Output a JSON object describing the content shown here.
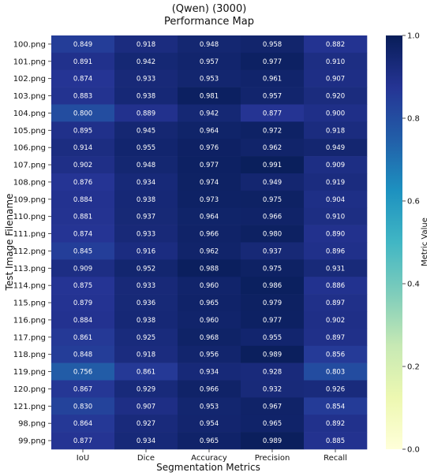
{
  "chart_data": {
    "type": "heatmap",
    "title": "(Qwen) (3000)",
    "subtitle": "Performance Map",
    "xlabel": "Segmentation Metrics",
    "ylabel": "Test Image Filename",
    "columns": [
      "IoU",
      "Dice",
      "Accuracy",
      "Precision",
      "Recall"
    ],
    "rows": [
      "100.png",
      "101.png",
      "102.png",
      "103.png",
      "104.png",
      "105.png",
      "106.png",
      "107.png",
      "108.png",
      "109.png",
      "110.png",
      "111.png",
      "112.png",
      "113.png",
      "114.png",
      "115.png",
      "116.png",
      "117.png",
      "118.png",
      "119.png",
      "120.png",
      "121.png",
      "98.png",
      "99.png"
    ],
    "values": [
      [
        0.849,
        0.918,
        0.948,
        0.958,
        0.882
      ],
      [
        0.891,
        0.942,
        0.957,
        0.977,
        0.91
      ],
      [
        0.874,
        0.933,
        0.953,
        0.961,
        0.907
      ],
      [
        0.883,
        0.938,
        0.981,
        0.957,
        0.92
      ],
      [
        0.8,
        0.889,
        0.942,
        0.877,
        0.9
      ],
      [
        0.895,
        0.945,
        0.964,
        0.972,
        0.918
      ],
      [
        0.914,
        0.955,
        0.976,
        0.962,
        0.949
      ],
      [
        0.902,
        0.948,
        0.977,
        0.991,
        0.909
      ],
      [
        0.876,
        0.934,
        0.974,
        0.949,
        0.919
      ],
      [
        0.884,
        0.938,
        0.973,
        0.975,
        0.904
      ],
      [
        0.881,
        0.937,
        0.964,
        0.966,
        0.91
      ],
      [
        0.874,
        0.933,
        0.966,
        0.98,
        0.89
      ],
      [
        0.845,
        0.916,
        0.962,
        0.937,
        0.896
      ],
      [
        0.909,
        0.952,
        0.988,
        0.975,
        0.931
      ],
      [
        0.875,
        0.933,
        0.96,
        0.986,
        0.886
      ],
      [
        0.879,
        0.936,
        0.965,
        0.979,
        0.897
      ],
      [
        0.884,
        0.938,
        0.96,
        0.977,
        0.902
      ],
      [
        0.861,
        0.925,
        0.968,
        0.955,
        0.897
      ],
      [
        0.848,
        0.918,
        0.956,
        0.989,
        0.856
      ],
      [
        0.756,
        0.861,
        0.934,
        0.928,
        0.803
      ],
      [
        0.867,
        0.929,
        0.966,
        0.932,
        0.926
      ],
      [
        0.83,
        0.907,
        0.953,
        0.967,
        0.854
      ],
      [
        0.864,
        0.927,
        0.954,
        0.965,
        0.892
      ],
      [
        0.877,
        0.934,
        0.965,
        0.989,
        0.885
      ]
    ],
    "value_format": "3 decimals",
    "colormap": "YlGnBu",
    "vmin": 0.0,
    "vmax": 1.0,
    "colorbar": {
      "label": "Metric Value",
      "ticks": [
        "0.0",
        "0.2",
        "0.4",
        "0.6",
        "0.8",
        "1.0"
      ],
      "position": "right"
    },
    "grid": false,
    "legend": "none"
  }
}
